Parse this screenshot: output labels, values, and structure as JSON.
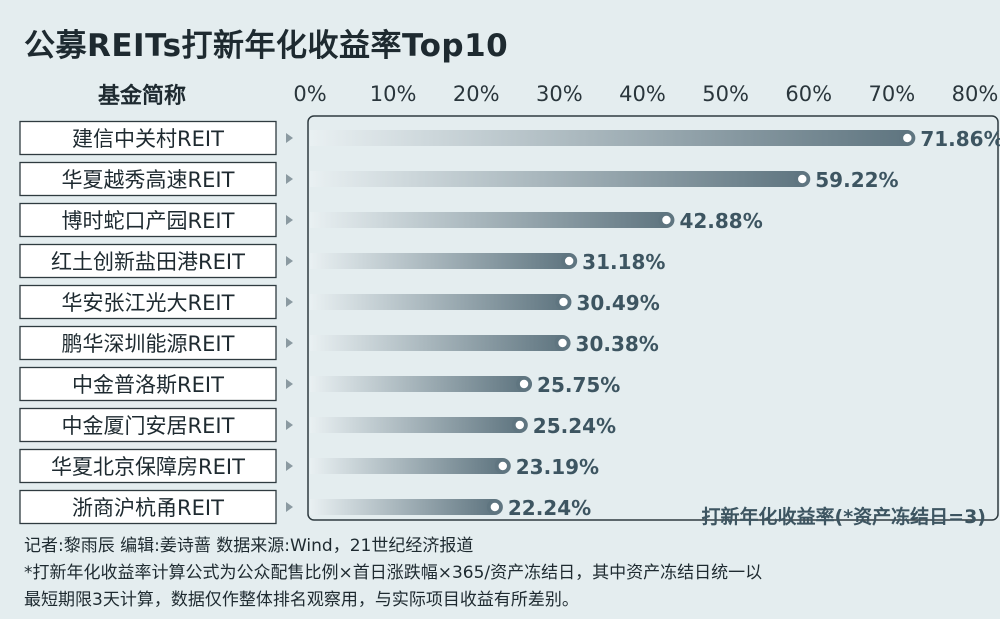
{
  "title": "公募REITs打新年化收益率Top10",
  "column_header": "基金简称",
  "chart_data": {
    "type": "bar",
    "orientation": "horizontal",
    "title": "公募REITs打新年化收益率Top10",
    "xlabel": "打新年化收益率(*资产冻结日=3)",
    "ylabel": "基金简称",
    "xlim": [
      0,
      80
    ],
    "x_ticks": [
      "0%",
      "10%",
      "20%",
      "30%",
      "40%",
      "50%",
      "60%",
      "70%",
      "80%"
    ],
    "categories": [
      "建信中关村REIT",
      "华夏越秀高速REIT",
      "博时蛇口产园REIT",
      "红土创新盐田港REIT",
      "华安张江光大REIT",
      "鹏华深圳能源REIT",
      "中金普洛斯REIT",
      "中金厦门安居REIT",
      "华夏北京保障房REIT",
      "浙商沪杭甬REIT"
    ],
    "values": [
      71.86,
      59.22,
      42.88,
      31.18,
      30.49,
      30.38,
      25.75,
      25.24,
      23.19,
      22.24
    ],
    "value_labels": [
      "71.86%",
      "59.22%",
      "42.88%",
      "31.18%",
      "30.49%",
      "30.38%",
      "25.75%",
      "25.24%",
      "23.19%",
      "22.24%"
    ],
    "grid": false,
    "colors": {
      "bar_end": "#5f7580",
      "bar_start": "#e9f0f2",
      "dot": "#5f7580",
      "label_text": "#3d5561"
    }
  },
  "footer": {
    "credits": "记者:黎雨辰  编辑:姜诗蔷  数据来源:Wind，21世纪经济报道",
    "note_line1": "*打新年化收益率计算公式为公众配售比例×首日涨跌幅×365/资产冻结日，其中资产冻结日统一以",
    "note_line2": "最短期限3天计算，数据仅作整体排名观察用，与实际项目收益有所差别。"
  }
}
